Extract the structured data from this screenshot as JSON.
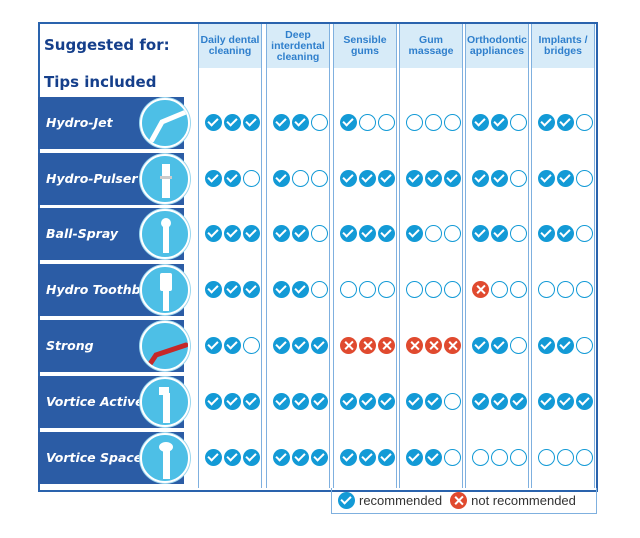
{
  "header": {
    "suggested_for": "Suggested for:",
    "tips_included": "Tips included"
  },
  "columns": [
    {
      "label": "Daily dental cleaning"
    },
    {
      "label": "Deep interdental cleaning"
    },
    {
      "label": "Sensible gums"
    },
    {
      "label": "Gum massage"
    },
    {
      "label": "Orthodontic appliances"
    },
    {
      "label": "Implants / bridges"
    }
  ],
  "rows": [
    {
      "name": "Hydro-Jet",
      "ratings": [
        "yyy",
        "yye",
        "yee",
        "eee",
        "yye",
        "yye"
      ]
    },
    {
      "name": "Hydro-Pulser",
      "ratings": [
        "yye",
        "yee",
        "yyy",
        "yyy",
        "yye",
        "yye"
      ]
    },
    {
      "name": "Ball-Spray",
      "ratings": [
        "yyy",
        "yye",
        "yyy",
        "yee",
        "yye",
        "yye"
      ]
    },
    {
      "name": "Hydro Toothbrush",
      "ratings": [
        "yyy",
        "yye",
        "eee",
        "eee",
        "nee",
        "eee"
      ]
    },
    {
      "name": "Strong",
      "ratings": [
        "yye",
        "yyy",
        "nnn",
        "nnn",
        "yye",
        "yye"
      ]
    },
    {
      "name": "Vortice Active",
      "ratings": [
        "yyy",
        "yyy",
        "yyy",
        "yye",
        "yyy",
        "yyy"
      ]
    },
    {
      "name": "Vortice Spacer",
      "ratings": [
        "yyy",
        "yyy",
        "yyy",
        "yye",
        "eee",
        "eee"
      ]
    }
  ],
  "legend": {
    "recommended": "recommended",
    "not_recommended": "not recommended"
  },
  "colors": {
    "brand_dark": "#2b5ca5",
    "check_blue": "#139ad6",
    "cross_red": "#e04a2f",
    "header_bg": "#d7ebf8"
  }
}
